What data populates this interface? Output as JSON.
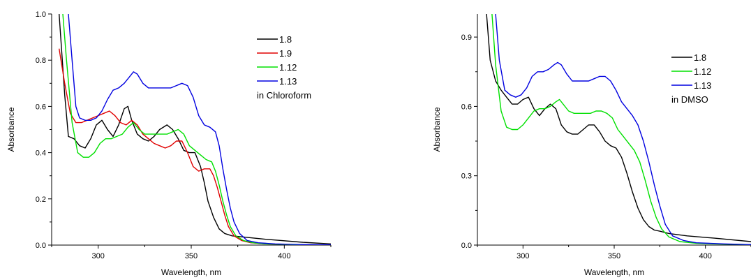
{
  "chart_data": [
    {
      "type": "line",
      "title": "",
      "xlabel": "Wavelength, nm",
      "ylabel": "Absorbance",
      "xlim": [
        275,
        425
      ],
      "ylim": [
        0,
        1.0
      ],
      "xticks": [
        300,
        350,
        400
      ],
      "xtick_labels": [
        "300",
        "350",
        "400"
      ],
      "yticks": [
        0.0,
        0.2,
        0.4,
        0.6,
        0.8,
        1.0
      ],
      "ytick_labels": [
        "0.0",
        "0.2",
        "0.4",
        "0.6",
        "0.8",
        "1.0"
      ],
      "legend_position": "top-right",
      "annotation": "in Chloroform",
      "series": [
        {
          "name": "1.8",
          "color": "#000000",
          "x": [
            279,
            282,
            284,
            287,
            290,
            293,
            296,
            299,
            302,
            305,
            308,
            311,
            314,
            316,
            318,
            321,
            324,
            327,
            330,
            333,
            337,
            340,
            343,
            346,
            349,
            352,
            355,
            357,
            359,
            362,
            365,
            368,
            372,
            378,
            390,
            410,
            425
          ],
          "y": [
            1.0,
            0.65,
            0.47,
            0.46,
            0.43,
            0.42,
            0.46,
            0.52,
            0.54,
            0.5,
            0.47,
            0.52,
            0.59,
            0.6,
            0.54,
            0.48,
            0.46,
            0.45,
            0.47,
            0.5,
            0.52,
            0.5,
            0.46,
            0.41,
            0.4,
            0.4,
            0.34,
            0.27,
            0.19,
            0.12,
            0.07,
            0.05,
            0.04,
            0.035,
            0.025,
            0.012,
            0.005
          ]
        },
        {
          "name": "1.9",
          "color": "#e00000",
          "x": [
            279,
            282,
            285,
            288,
            291,
            294,
            297,
            300,
            303,
            306,
            309,
            312,
            315,
            318,
            321,
            324,
            327,
            330,
            333,
            336,
            339,
            342,
            345,
            348,
            351,
            354,
            357,
            360,
            362,
            364,
            366,
            368,
            370,
            373,
            377,
            382,
            390,
            405,
            425
          ],
          "y": [
            0.85,
            0.7,
            0.57,
            0.53,
            0.53,
            0.54,
            0.55,
            0.56,
            0.57,
            0.58,
            0.56,
            0.53,
            0.52,
            0.54,
            0.52,
            0.48,
            0.46,
            0.44,
            0.43,
            0.42,
            0.43,
            0.45,
            0.45,
            0.4,
            0.34,
            0.32,
            0.33,
            0.33,
            0.3,
            0.25,
            0.19,
            0.13,
            0.08,
            0.04,
            0.02,
            0.01,
            0.005,
            0.002,
            0.001
          ]
        },
        {
          "name": "1.12",
          "color": "#00e000",
          "x": [
            281,
            283,
            286,
            289,
            292,
            295,
            298,
            301,
            304,
            307,
            310,
            313,
            316,
            319,
            322,
            325,
            328,
            331,
            334,
            337,
            340,
            343,
            346,
            349,
            352,
            355,
            358,
            361,
            363,
            365,
            367,
            369,
            371,
            374,
            378,
            383,
            390,
            405,
            425
          ],
          "y": [
            1.0,
            0.8,
            0.53,
            0.4,
            0.38,
            0.38,
            0.4,
            0.44,
            0.46,
            0.46,
            0.47,
            0.48,
            0.51,
            0.53,
            0.5,
            0.48,
            0.48,
            0.48,
            0.48,
            0.48,
            0.49,
            0.5,
            0.48,
            0.43,
            0.41,
            0.39,
            0.37,
            0.36,
            0.32,
            0.26,
            0.19,
            0.13,
            0.08,
            0.04,
            0.02,
            0.01,
            0.005,
            0.002,
            0.001
          ]
        },
        {
          "name": "1.13",
          "color": "#0000e0",
          "x": [
            284,
            286,
            288,
            290,
            293,
            296,
            299,
            302,
            305,
            308,
            311,
            314,
            317,
            319,
            321,
            324,
            327,
            330,
            333,
            336,
            339,
            342,
            345,
            348,
            351,
            354,
            357,
            360,
            363,
            365,
            367,
            369,
            371,
            373,
            376,
            380,
            386,
            395,
            410,
            425
          ],
          "y": [
            1.0,
            0.8,
            0.6,
            0.55,
            0.54,
            0.54,
            0.55,
            0.58,
            0.63,
            0.67,
            0.68,
            0.7,
            0.73,
            0.75,
            0.74,
            0.7,
            0.68,
            0.68,
            0.68,
            0.68,
            0.68,
            0.69,
            0.7,
            0.69,
            0.64,
            0.56,
            0.52,
            0.51,
            0.49,
            0.43,
            0.33,
            0.24,
            0.16,
            0.1,
            0.05,
            0.02,
            0.01,
            0.005,
            0.002,
            0.001
          ]
        }
      ]
    },
    {
      "type": "line",
      "title": "",
      "xlabel": "Wavelength, nm",
      "ylabel": "Absorbance",
      "xlim": [
        275,
        425
      ],
      "ylim": [
        0,
        1.0
      ],
      "xticks": [
        300,
        350,
        400
      ],
      "xtick_labels": [
        "300",
        "350",
        "400"
      ],
      "yticks": [
        0.0,
        0.3,
        0.6,
        0.9
      ],
      "ytick_labels": [
        "0.0",
        "0.3",
        "0.6",
        "0.9"
      ],
      "legend_position": "top-right",
      "annotation": "in DMSO",
      "series": [
        {
          "name": "1.8",
          "color": "#000000",
          "x": [
            280,
            282,
            285,
            288,
            291,
            294,
            297,
            300,
            303,
            306,
            309,
            312,
            315,
            318,
            321,
            324,
            327,
            330,
            333,
            336,
            339,
            342,
            345,
            348,
            351,
            354,
            357,
            360,
            363,
            366,
            369,
            372,
            375,
            380,
            390,
            405,
            425
          ],
          "y": [
            1.0,
            0.8,
            0.71,
            0.67,
            0.64,
            0.61,
            0.61,
            0.63,
            0.64,
            0.59,
            0.56,
            0.59,
            0.61,
            0.59,
            0.52,
            0.49,
            0.48,
            0.48,
            0.5,
            0.52,
            0.52,
            0.49,
            0.45,
            0.43,
            0.42,
            0.38,
            0.31,
            0.23,
            0.16,
            0.11,
            0.08,
            0.065,
            0.06,
            0.05,
            0.04,
            0.03,
            0.015
          ]
        },
        {
          "name": "1.12",
          "color": "#00e000",
          "x": [
            283,
            285,
            288,
            291,
            294,
            297,
            300,
            303,
            306,
            309,
            312,
            315,
            318,
            320,
            322,
            325,
            328,
            331,
            334,
            337,
            340,
            343,
            346,
            349,
            352,
            355,
            358,
            361,
            364,
            367,
            370,
            373,
            376,
            380,
            386,
            395,
            410,
            425
          ],
          "y": [
            1.0,
            0.78,
            0.58,
            0.51,
            0.5,
            0.5,
            0.52,
            0.55,
            0.58,
            0.59,
            0.59,
            0.6,
            0.62,
            0.63,
            0.61,
            0.58,
            0.57,
            0.57,
            0.57,
            0.57,
            0.58,
            0.58,
            0.57,
            0.55,
            0.5,
            0.47,
            0.44,
            0.41,
            0.36,
            0.28,
            0.19,
            0.12,
            0.07,
            0.035,
            0.015,
            0.008,
            0.004,
            0.002
          ]
        },
        {
          "name": "1.13",
          "color": "#0000e0",
          "x": [
            285,
            287,
            290,
            293,
            296,
            299,
            302,
            305,
            308,
            311,
            314,
            317,
            319,
            321,
            324,
            327,
            330,
            333,
            336,
            339,
            342,
            345,
            348,
            351,
            354,
            357,
            360,
            363,
            366,
            369,
            372,
            375,
            378,
            382,
            388,
            395,
            410,
            425
          ],
          "y": [
            1.0,
            0.8,
            0.67,
            0.65,
            0.64,
            0.65,
            0.68,
            0.73,
            0.75,
            0.75,
            0.76,
            0.78,
            0.79,
            0.78,
            0.74,
            0.71,
            0.71,
            0.71,
            0.71,
            0.72,
            0.73,
            0.73,
            0.71,
            0.67,
            0.62,
            0.59,
            0.56,
            0.52,
            0.45,
            0.36,
            0.26,
            0.17,
            0.09,
            0.04,
            0.02,
            0.01,
            0.005,
            0.002
          ]
        }
      ]
    }
  ]
}
